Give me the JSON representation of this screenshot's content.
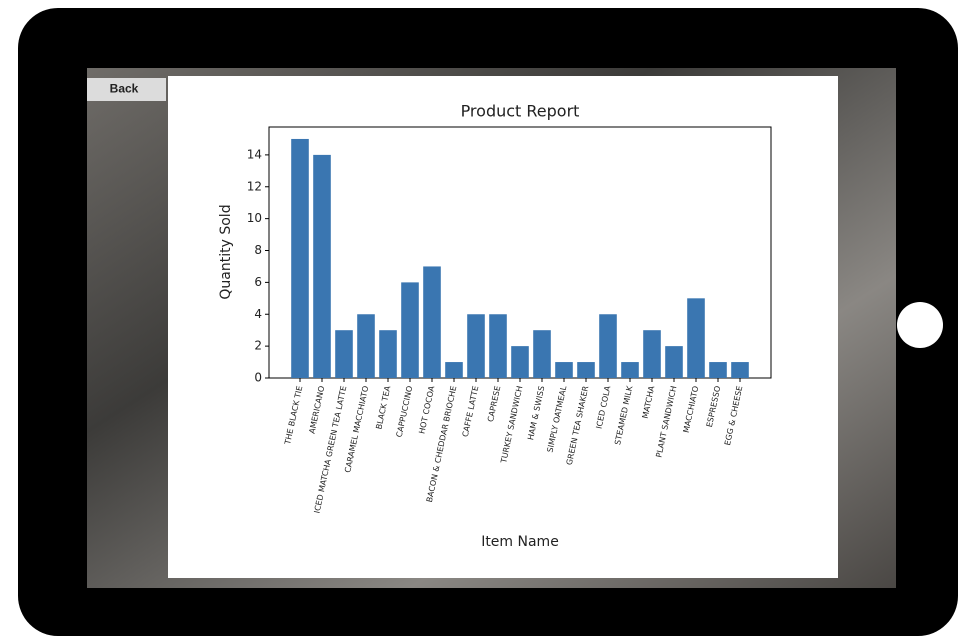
{
  "ui": {
    "back_button": "Back"
  },
  "chart_data": {
    "type": "bar",
    "title": "Product Report",
    "x_label": "Item Name",
    "y_label": "Quantity Sold",
    "categories": [
      "THE BLACK TIE",
      "AMERICANO",
      "ICED MATCHA GREEN TEA LATTE",
      "CARAMEL MACCHIATO",
      "BLACK TEA",
      "CAPPUCCINO",
      "HOT COCOA",
      "BACON & CHEDDAR BRIOCHE",
      "CAFFE LATTE",
      "CAPRESE",
      "TURKEY SANDWICH",
      "HAM & SWISS",
      "SIMPLY OATMEAL",
      "GREEN TEA SHAKER",
      "ICED COLA",
      "STEAMED MILK",
      "MATCHA",
      "PLANT SANDWICH",
      "MACCHIATO",
      "ESPRESSO",
      "EGG & CHEESE"
    ],
    "values": [
      15,
      14,
      3,
      4,
      3,
      6,
      7,
      1,
      4,
      4,
      2,
      3,
      1,
      1,
      4,
      1,
      3,
      2,
      5,
      1,
      1
    ],
    "color": "#3a76b1",
    "ylim": [
      0,
      15.75
    ],
    "yticks": [
      0,
      2,
      4,
      6,
      8,
      10,
      12,
      14
    ],
    "grid": false
  }
}
